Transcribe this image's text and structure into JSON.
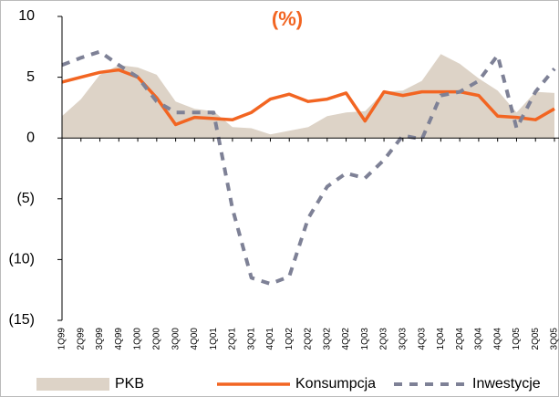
{
  "chart_data": {
    "type": "line",
    "title": "(%)",
    "title_color": "#f26522",
    "categories": [
      "1Q99",
      "2Q99",
      "3Q99",
      "4Q99",
      "1Q00",
      "2Q00",
      "3Q00",
      "4Q00",
      "1Q01",
      "2Q01",
      "3Q01",
      "4Q01",
      "1Q02",
      "2Q02",
      "3Q02",
      "4Q02",
      "1Q03",
      "2Q03",
      "3Q03",
      "4Q03",
      "1Q04",
      "2Q04",
      "3Q04",
      "4Q04",
      "1Q05",
      "2Q05",
      "3Q05"
    ],
    "series": [
      {
        "name": "PKB",
        "style": "area",
        "color": "#ddd3c7",
        "values": [
          1.8,
          3.2,
          5.2,
          6.0,
          5.8,
          5.2,
          3.0,
          2.4,
          2.2,
          0.9,
          0.8,
          0.3,
          0.6,
          0.9,
          1.8,
          2.1,
          2.2,
          3.8,
          3.9,
          4.7,
          6.9,
          6.1,
          4.9,
          3.9,
          2.1,
          3.8,
          3.7
        ]
      },
      {
        "name": "Konsumpcja",
        "style": "solid",
        "color": "#f26522",
        "values": [
          4.6,
          5.0,
          5.4,
          5.6,
          5.0,
          3.3,
          1.1,
          1.7,
          1.6,
          1.5,
          2.1,
          3.2,
          3.6,
          3.0,
          3.2,
          3.7,
          1.4,
          3.8,
          3.5,
          3.8,
          3.8,
          3.8,
          3.5,
          1.8,
          1.7,
          1.5,
          2.4
        ]
      },
      {
        "name": "Inwestycje",
        "style": "dashed",
        "color": "#7e8196",
        "values": [
          6.0,
          6.6,
          7.1,
          6.0,
          5.0,
          3.0,
          2.1,
          2.1,
          2.1,
          -5.8,
          -11.5,
          -12.0,
          -11.4,
          -6.6,
          -4.0,
          -2.9,
          -3.3,
          -1.8,
          0.2,
          -0.1,
          3.5,
          3.8,
          4.7,
          6.8,
          0.8,
          3.8,
          5.7
        ]
      }
    ],
    "ylim": [
      -15,
      10
    ],
    "yticks": [
      {
        "value": -15,
        "label": "(15)"
      },
      {
        "value": -10,
        "label": "(10)"
      },
      {
        "value": -5,
        "label": "(5)"
      },
      0,
      5,
      10
    ],
    "grid": false,
    "legend": "bottom"
  }
}
